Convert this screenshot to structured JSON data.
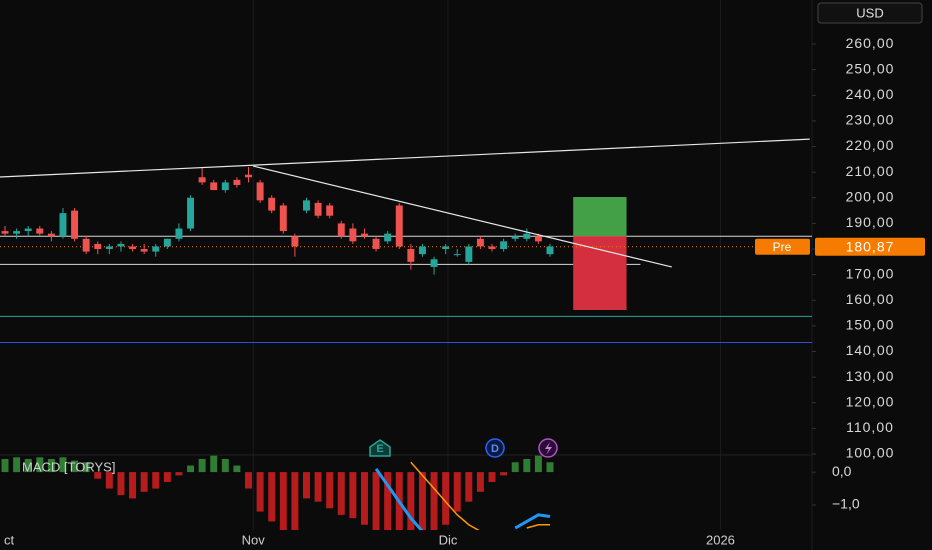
{
  "chart_data": [
    {
      "type": "candlestick",
      "currency": "USD",
      "pre_label": "Pre",
      "last_price": {
        "value": 180.87,
        "label": "180,87"
      },
      "ylim": [
        99.6,
        277.2
      ],
      "yticks": [
        {
          "value": 260,
          "label": "260,00"
        },
        {
          "value": 250,
          "label": "250,00"
        },
        {
          "value": 240,
          "label": "240,00"
        },
        {
          "value": 230,
          "label": "230,00"
        },
        {
          "value": 220,
          "label": "220,00"
        },
        {
          "value": 210,
          "label": "210,00"
        },
        {
          "value": 200,
          "label": "200,00"
        },
        {
          "value": 190,
          "label": "190,00"
        },
        {
          "value": 180,
          "label": "180,00"
        },
        {
          "value": 170,
          "label": "170,00"
        },
        {
          "value": 160,
          "label": "160,00"
        },
        {
          "value": 150,
          "label": "150,00"
        },
        {
          "value": 140,
          "label": "140,00"
        },
        {
          "value": 130,
          "label": "130,00"
        },
        {
          "value": 120,
          "label": "120,00"
        },
        {
          "value": 110,
          "label": "110,00"
        },
        {
          "value": 100,
          "label": "100,00"
        }
      ],
      "xticks": [
        {
          "value": 0,
          "label": "ct"
        },
        {
          "value": 21.4,
          "label": "Nov"
        },
        {
          "value": 38.2,
          "label": "Dic"
        },
        {
          "value": 61.7,
          "label": "2026"
        }
      ],
      "up_color": "#26a69a",
      "down_color": "#ef5350",
      "open": [
        187,
        186,
        187,
        188,
        186,
        185,
        195,
        184,
        182,
        180,
        181,
        181,
        180,
        179,
        181,
        184,
        188,
        208,
        206,
        203,
        207,
        209,
        206,
        200,
        197,
        185,
        195,
        198,
        197,
        190,
        188,
        186,
        184,
        183,
        197,
        180,
        178,
        173,
        180,
        178,
        175,
        184,
        181,
        180,
        184,
        184,
        185,
        178
      ],
      "high": [
        189,
        188,
        189,
        189,
        187,
        196,
        196,
        185,
        183,
        182,
        183,
        182,
        182,
        182,
        184,
        190,
        201,
        212,
        207,
        207,
        208,
        212,
        207,
        201,
        198,
        186,
        200,
        199,
        198,
        191,
        190,
        188,
        185,
        187,
        198,
        182,
        182,
        177,
        182,
        180,
        182,
        185,
        182,
        184,
        186,
        188,
        186,
        182
      ],
      "low": [
        185,
        184,
        185,
        185,
        183,
        184,
        183,
        178,
        178,
        178,
        179,
        179,
        178,
        177,
        180,
        183,
        187,
        205,
        203,
        202,
        204,
        206,
        198,
        194,
        186,
        177,
        194,
        192,
        192,
        184,
        182,
        184,
        179,
        182,
        180,
        172,
        177,
        170,
        178,
        177,
        174,
        180,
        179,
        179,
        183,
        183,
        182,
        177
      ],
      "close": [
        186,
        187,
        188,
        186,
        185,
        194,
        184,
        179,
        180,
        181,
        182,
        180,
        179,
        181,
        184,
        188,
        200,
        206,
        203,
        206,
        205,
        208,
        199,
        195,
        187,
        181,
        199,
        193,
        193,
        185,
        183,
        185,
        180,
        186,
        181,
        175,
        181,
        176,
        181,
        178,
        181,
        181,
        180,
        183,
        185,
        186,
        183,
        181
      ],
      "levels": [
        {
          "y": 185,
          "color": "#d8d8d8"
        },
        {
          "y": 174,
          "x_end": 54.8,
          "color": "#d8d8d8"
        },
        {
          "y": 153.7,
          "color": "#26a69a"
        },
        {
          "y": 143.5,
          "color": "#2f4fd8"
        }
      ],
      "trendlines": [
        {
          "x": [
            -0.43,
            69.4
          ],
          "y": [
            208.1,
            222.9
          ]
        },
        {
          "x": [
            21.4,
            57.5
          ],
          "y": [
            212.4,
            173.0
          ]
        }
      ],
      "position": {
        "x": [
          49.0,
          53.6
        ],
        "entry": 185,
        "target": 200.3,
        "stop": 156.2,
        "profit_color": "#43a047",
        "loss_color": "#d32f3f"
      },
      "events": [
        "E",
        "D"
      ]
    },
    {
      "type": "bar",
      "title": "MACD [TORYS]",
      "ylim": [
        -1.76,
        0.52
      ],
      "yticks": [
        {
          "value": 0,
          "label": "0,0"
        },
        {
          "value": -1,
          "label": "−1,0"
        }
      ],
      "values": [
        0.4,
        0.45,
        0.4,
        0.45,
        0.4,
        0.45,
        0.35,
        0.3,
        -0.2,
        -0.5,
        -0.7,
        -0.8,
        -0.6,
        -0.5,
        -0.3,
        -0.1,
        0.2,
        0.4,
        0.5,
        0.4,
        0.2,
        -0.5,
        -1.2,
        -1.5,
        -1.8,
        -1.8,
        -0.8,
        -0.9,
        -1.1,
        -1.3,
        -1.4,
        -1.6,
        -1.8,
        -1.8,
        -1.8,
        -1.8,
        -1.8,
        -1.8,
        -1.6,
        -1.2,
        -0.9,
        -0.6,
        -0.3,
        -0.1,
        0.3,
        0.4,
        0.5,
        0.3
      ],
      "series": [
        {
          "color": "#2196f3",
          "values": [
            null,
            null,
            null,
            null,
            null,
            null,
            null,
            null,
            null,
            null,
            null,
            null,
            null,
            null,
            null,
            null,
            null,
            null,
            null,
            null,
            null,
            null,
            null,
            null,
            null,
            null,
            null,
            null,
            null,
            null,
            null,
            null,
            0.1,
            -0.4,
            -0.9,
            -1.4,
            -1.8,
            null,
            null,
            null,
            null,
            null,
            null,
            null,
            -1.7,
            -1.5,
            -1.3,
            -1.35
          ]
        },
        {
          "color": "#ff9800",
          "values": [
            null,
            null,
            null,
            null,
            null,
            null,
            null,
            null,
            null,
            null,
            null,
            null,
            null,
            null,
            null,
            null,
            null,
            null,
            null,
            null,
            null,
            null,
            null,
            null,
            null,
            null,
            null,
            null,
            null,
            null,
            null,
            null,
            null,
            null,
            null,
            0.3,
            -0.1,
            -0.5,
            -0.9,
            -1.3,
            -1.6,
            -1.8,
            null,
            null,
            null,
            -1.7,
            -1.6,
            -1.6
          ]
        }
      ]
    }
  ]
}
